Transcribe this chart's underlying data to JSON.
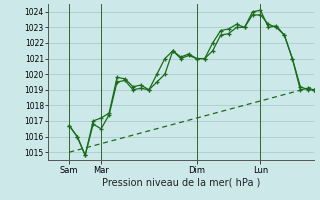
{
  "bg_color": "#cce8e8",
  "grid_color": "#aacccc",
  "line_color": "#1a6b1a",
  "title": "Pression niveau de la mer( hPa )",
  "ylabel_ticks": [
    1015,
    1016,
    1017,
    1018,
    1019,
    1020,
    1021,
    1022,
    1023,
    1024
  ],
  "ylim": [
    1014.5,
    1024.5
  ],
  "day_labels": [
    "Sam",
    "Mar",
    "Dim",
    "Lun"
  ],
  "day_positions": [
    8,
    20,
    56,
    80
  ],
  "xlim": [
    0,
    100
  ],
  "series1": [
    [
      8,
      1016.7
    ],
    [
      11,
      1016.0
    ],
    [
      14,
      1014.8
    ],
    [
      17,
      1017.0
    ],
    [
      20,
      1017.2
    ],
    [
      23,
      1017.5
    ],
    [
      26,
      1019.8
    ],
    [
      29,
      1019.7
    ],
    [
      32,
      1019.2
    ],
    [
      35,
      1019.3
    ],
    [
      38,
      1019.0
    ],
    [
      41,
      1019.5
    ],
    [
      44,
      1020.0
    ],
    [
      47,
      1021.5
    ],
    [
      50,
      1021.0
    ],
    [
      53,
      1021.2
    ],
    [
      56,
      1021.0
    ],
    [
      59,
      1021.0
    ],
    [
      62,
      1022.0
    ],
    [
      65,
      1022.8
    ],
    [
      68,
      1022.9
    ],
    [
      71,
      1023.2
    ],
    [
      74,
      1023.0
    ],
    [
      77,
      1024.0
    ],
    [
      80,
      1024.1
    ],
    [
      83,
      1023.0
    ],
    [
      86,
      1023.1
    ],
    [
      89,
      1022.5
    ],
    [
      92,
      1021.0
    ],
    [
      95,
      1019.0
    ],
    [
      98,
      1019.1
    ],
    [
      100,
      1019.0
    ]
  ],
  "series2": [
    [
      8,
      1016.7
    ],
    [
      11,
      1016.0
    ],
    [
      14,
      1014.8
    ],
    [
      17,
      1016.8
    ],
    [
      20,
      1016.5
    ],
    [
      23,
      1017.4
    ],
    [
      26,
      1019.5
    ],
    [
      29,
      1019.6
    ],
    [
      32,
      1019.0
    ],
    [
      35,
      1019.1
    ],
    [
      38,
      1019.0
    ],
    [
      41,
      1020.0
    ],
    [
      44,
      1021.0
    ],
    [
      47,
      1021.5
    ],
    [
      50,
      1021.1
    ],
    [
      53,
      1021.3
    ],
    [
      56,
      1021.0
    ],
    [
      59,
      1021.0
    ],
    [
      62,
      1021.5
    ],
    [
      65,
      1022.5
    ],
    [
      68,
      1022.6
    ],
    [
      71,
      1023.0
    ],
    [
      74,
      1023.0
    ],
    [
      77,
      1023.8
    ],
    [
      80,
      1023.8
    ],
    [
      83,
      1023.2
    ],
    [
      86,
      1023.0
    ],
    [
      89,
      1022.5
    ],
    [
      92,
      1021.0
    ],
    [
      95,
      1019.2
    ],
    [
      98,
      1019.0
    ],
    [
      100,
      1019.0
    ]
  ],
  "trend_line": [
    [
      8,
      1015.0
    ],
    [
      100,
      1019.2
    ]
  ],
  "vline_positions": [
    8,
    20,
    56,
    80
  ]
}
